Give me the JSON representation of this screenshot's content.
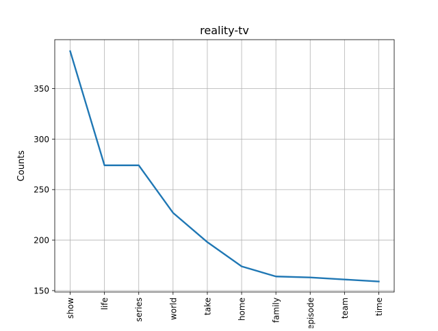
{
  "chart_data": {
    "type": "line",
    "title": "reality-tv",
    "xlabel": "",
    "ylabel": "Counts",
    "categories": [
      "show",
      "life",
      "series",
      "world",
      "take",
      "home",
      "family",
      "episode",
      "team",
      "time"
    ],
    "series": [
      {
        "values": [
          387,
          274,
          274,
          227,
          198,
          174,
          164,
          163,
          161,
          159
        ],
        "color": "#1f77b4"
      }
    ],
    "yticks": [
      150,
      200,
      250,
      300,
      350
    ],
    "ylim": [
      148.6,
      398.4
    ],
    "grid": true,
    "tick_label_rotation": "vertical"
  }
}
